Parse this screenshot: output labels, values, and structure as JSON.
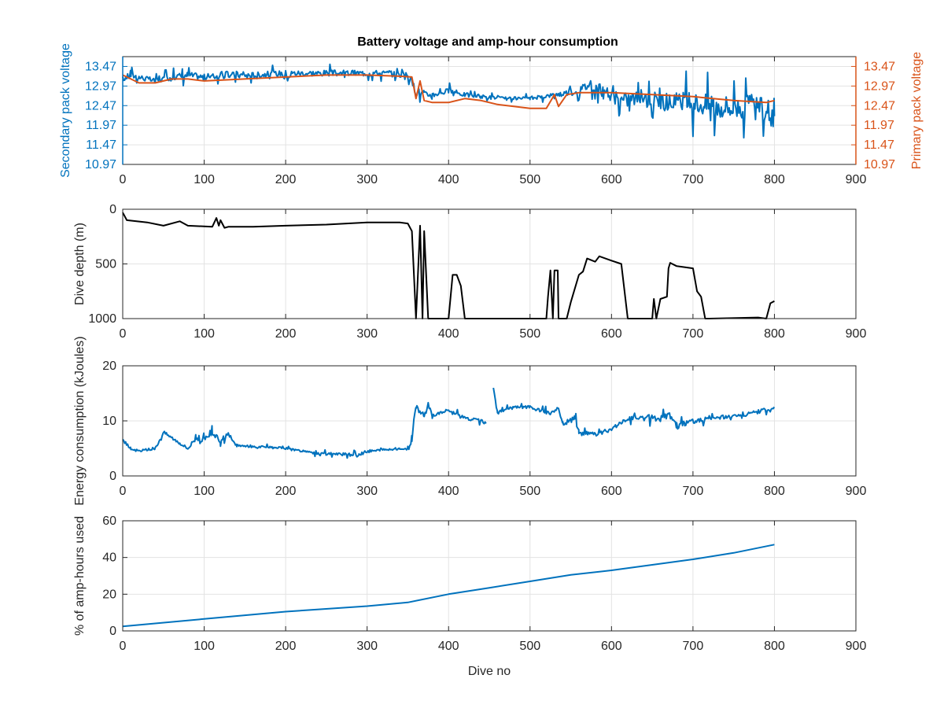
{
  "figure": {
    "title": "Battery voltage and amp-hour consumption",
    "colors": {
      "blue": "#0072BD",
      "orange": "#D95319",
      "black": "#000000",
      "grid": "#e3e3e3",
      "axis": "#262626"
    }
  },
  "chart_data": [
    {
      "type": "line",
      "title": "Battery voltage and amp-hour consumption",
      "xlabel": "",
      "ylabel_left": "Secondary pack voltage",
      "ylabel_right": "Primary pack voltage",
      "xlim": [
        0,
        900
      ],
      "ylim": [
        10.97,
        13.72
      ],
      "yticks_left": [
        "10.97",
        "11.47",
        "11.97",
        "12.47",
        "12.97",
        "13.47"
      ],
      "yticks_right": [
        "10.97",
        "11.47",
        "11.97",
        "12.47",
        "12.97",
        "13.47"
      ],
      "xticks": [
        "0",
        "100",
        "200",
        "300",
        "400",
        "500",
        "600",
        "700",
        "800",
        "900"
      ],
      "grid": true,
      "series": [
        {
          "name": "",
          "color": "#0072BD",
          "axis": "left",
          "x": [
            0,
            10,
            20,
            40,
            60,
            80,
            100,
            130,
            160,
            200,
            240,
            280,
            320,
            350,
            360,
            370,
            380,
            400,
            420,
            440,
            470,
            500,
            530,
            560,
            575,
            590,
            610,
            640,
            670,
            700,
            730,
            760,
            790,
            800
          ],
          "y": [
            13.15,
            13.25,
            13.2,
            13.1,
            13.2,
            13.25,
            13.2,
            13.25,
            13.25,
            13.3,
            13.3,
            13.3,
            13.3,
            13.25,
            12.85,
            12.75,
            12.75,
            12.85,
            12.75,
            12.7,
            12.65,
            12.65,
            12.75,
            12.85,
            13.05,
            12.8,
            12.6,
            12.7,
            12.55,
            12.55,
            12.45,
            12.45,
            12.35,
            12.2
          ],
          "noise": [
            0.2,
            0.25,
            0.22,
            0.18,
            0.22,
            0.25,
            0.22,
            0.25,
            0.22,
            0.22,
            0.22,
            0.22,
            0.22,
            0.22,
            0.35,
            0.25,
            0.2,
            0.2,
            0.15,
            0.15,
            0.12,
            0.12,
            0.15,
            0.3,
            0.4,
            0.5,
            0.55,
            0.55,
            0.7,
            0.8,
            0.9,
            0.9,
            0.9,
            0.9
          ]
        },
        {
          "name": "",
          "color": "#D95319",
          "axis": "right",
          "x": [
            0,
            10,
            20,
            40,
            60,
            80,
            100,
            150,
            200,
            250,
            300,
            340,
            355,
            360,
            365,
            370,
            380,
            400,
            420,
            440,
            460,
            480,
            500,
            520,
            530,
            535,
            545,
            560,
            600,
            650,
            700,
            750,
            790,
            800
          ],
          "y": [
            13.25,
            13.15,
            13.05,
            13.05,
            13.15,
            13.15,
            13.1,
            13.15,
            13.2,
            13.25,
            13.25,
            13.22,
            13.2,
            12.65,
            13.1,
            12.6,
            12.55,
            12.55,
            12.65,
            12.6,
            12.5,
            12.45,
            12.4,
            12.4,
            12.75,
            12.45,
            12.75,
            12.8,
            12.8,
            12.75,
            12.7,
            12.6,
            12.55,
            12.6
          ]
        }
      ]
    },
    {
      "type": "line",
      "ylabel": "Dive depth (m)",
      "xlim": [
        0,
        900
      ],
      "ylim": [
        0,
        1000
      ],
      "y_reversed": true,
      "yticks": [
        "0",
        "500",
        "1000"
      ],
      "xticks": [
        "0",
        "100",
        "200",
        "300",
        "400",
        "500",
        "600",
        "700",
        "800",
        "900"
      ],
      "grid": true,
      "series": [
        {
          "name": "",
          "color": "#000000",
          "x": [
            0,
            5,
            30,
            50,
            70,
            80,
            110,
            115,
            118,
            120,
            125,
            130,
            160,
            200,
            250,
            300,
            340,
            350,
            355,
            360,
            365,
            368,
            370,
            375,
            400,
            405,
            410,
            415,
            420,
            440,
            520,
            522,
            525,
            528,
            530,
            534,
            535,
            545,
            550,
            560,
            565,
            570,
            580,
            585,
            600,
            612,
            620,
            650,
            652,
            655,
            660,
            668,
            670,
            672,
            680,
            700,
            705,
            710,
            715,
            720,
            780,
            790,
            795,
            800
          ],
          "y": [
            30,
            100,
            120,
            150,
            110,
            150,
            160,
            80,
            150,
            100,
            170,
            160,
            160,
            150,
            140,
            120,
            120,
            130,
            200,
            1000,
            150,
            1000,
            200,
            1000,
            1000,
            600,
            600,
            700,
            1000,
            1000,
            1000,
            800,
            560,
            1000,
            560,
            560,
            1000,
            1000,
            850,
            600,
            570,
            450,
            480,
            430,
            470,
            500,
            1000,
            1000,
            820,
            1000,
            820,
            800,
            540,
            490,
            520,
            540,
            750,
            800,
            1000,
            1000,
            990,
            1000,
            860,
            840
          ]
        }
      ]
    },
    {
      "type": "line",
      "ylabel": "Energy consumption (kJoules)",
      "xlim": [
        0,
        900
      ],
      "ylim": [
        0,
        20
      ],
      "yticks": [
        "0",
        "10",
        "20"
      ],
      "xticks": [
        "0",
        "100",
        "200",
        "300",
        "400",
        "500",
        "600",
        "700",
        "800",
        "900"
      ],
      "grid": true,
      "series": [
        {
          "name": "",
          "color": "#0072BD",
          "x": [
            0,
            10,
            20,
            40,
            50,
            70,
            80,
            90,
            100,
            110,
            120,
            130,
            140,
            200,
            240,
            260,
            290,
            300,
            340,
            350,
            355,
            360,
            370,
            375,
            380,
            400,
            420,
            440,
            447,
            453,
            455,
            460,
            480,
            500,
            520,
            535,
            540,
            555,
            560,
            580,
            600,
            620,
            640,
            660,
            670,
            680,
            690,
            720,
            760,
            790,
            800
          ],
          "y": [
            6.5,
            5,
            4.5,
            5,
            8,
            6,
            5,
            7,
            6.5,
            7.5,
            6.5,
            7.5,
            5.5,
            5,
            4,
            4,
            3.8,
            4.5,
            5,
            4.8,
            7,
            12.5,
            11,
            13,
            11,
            12,
            10.5,
            10,
            9.5,
            null,
            16,
            11.5,
            12.5,
            12.5,
            11.5,
            12,
            9.5,
            10.5,
            8,
            7.5,
            8.5,
            10.5,
            10.5,
            10.5,
            11,
            9,
            9.5,
            10.5,
            11,
            12,
            12.5
          ],
          "noise": [
            0.8,
            0.6,
            0.6,
            0.8,
            0.8,
            0.8,
            0.8,
            1.5,
            1.5,
            1.5,
            1.5,
            1.0,
            0.6,
            0.6,
            0.6,
            0.8,
            0.8,
            0.8,
            0.6,
            0.6,
            2.5,
            1.5,
            1.0,
            1.0,
            0.8,
            0.8,
            0.8,
            0.8,
            0.6,
            0,
            0,
            0.8,
            0.8,
            0.8,
            1.2,
            1.5,
            1.5,
            1.5,
            1.2,
            1.0,
            1.0,
            1.0,
            1.5,
            2.0,
            2.0,
            2.0,
            1.5,
            1.0,
            1.0,
            1.0,
            0.8
          ]
        }
      ]
    },
    {
      "type": "line",
      "xlabel": "Dive no",
      "ylabel": "% of amp-hours used",
      "xlim": [
        0,
        900
      ],
      "ylim": [
        0,
        60
      ],
      "yticks": [
        "0",
        "20",
        "40",
        "60"
      ],
      "xticks": [
        "0",
        "100",
        "200",
        "300",
        "400",
        "500",
        "600",
        "700",
        "800",
        "900"
      ],
      "grid": true,
      "series": [
        {
          "name": "",
          "color": "#0072BD",
          "x": [
            0,
            100,
            200,
            300,
            350,
            400,
            450,
            500,
            550,
            600,
            650,
            700,
            750,
            800
          ],
          "y": [
            2.5,
            6.5,
            10.5,
            13.5,
            15.5,
            20,
            23.5,
            27,
            30.5,
            33,
            36,
            39,
            42.5,
            47
          ]
        }
      ]
    }
  ]
}
